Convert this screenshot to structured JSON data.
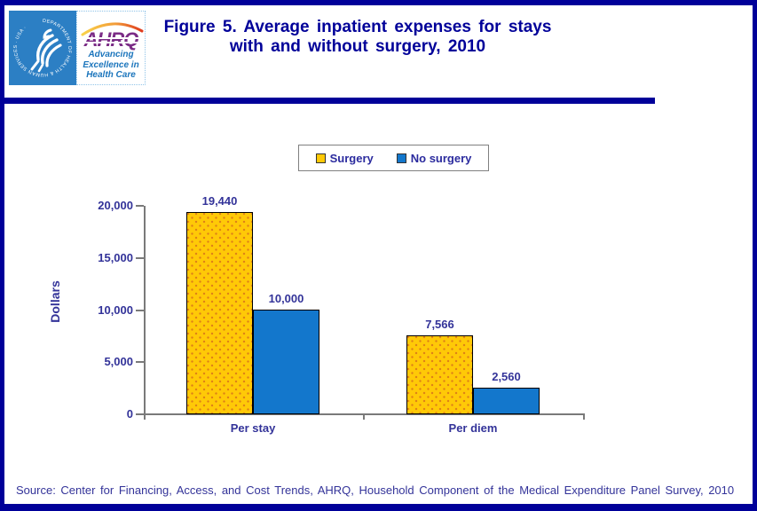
{
  "page": {
    "title_line1": "Figure 5. Average inpatient expenses for stays",
    "title_line2": "with and without surgery, 2010",
    "source": "Source: Center for Financing, Access, and Cost Trends, AHRQ, Household Component of the Medical Expenditure Panel Survey, 2010",
    "border_color": "#000099"
  },
  "logo": {
    "hhs_ring_text": "DEPARTMENT OF HEALTH & HUMAN SERVICES · USA ·",
    "ahrq_acronym": "AHRQ",
    "tagline_line1": "Advancing",
    "tagline_line2": "Excellence in",
    "tagline_line3": "Health Care"
  },
  "chart_data": {
    "type": "bar",
    "title": "",
    "categories": [
      "Per stay",
      "Per diem"
    ],
    "series": [
      {
        "name": "Surgery",
        "color": "#FFC907",
        "fill": "dots",
        "values": [
          19440,
          7566
        ],
        "labels": [
          "19,440",
          "7,566"
        ]
      },
      {
        "name": "No surgery",
        "color": "#1377CC",
        "fill": "solid",
        "values": [
          10000,
          2560
        ],
        "labels": [
          "10,000",
          "2,560"
        ]
      }
    ],
    "ylabel": "Dollars",
    "ylim": [
      0,
      20000
    ],
    "yticks": [
      0,
      5000,
      10000,
      15000,
      20000
    ],
    "ytick_labels": [
      "0",
      "5,000",
      "10,000",
      "15,000",
      "20,000"
    ],
    "legend_position": "top-center",
    "grid": false
  }
}
